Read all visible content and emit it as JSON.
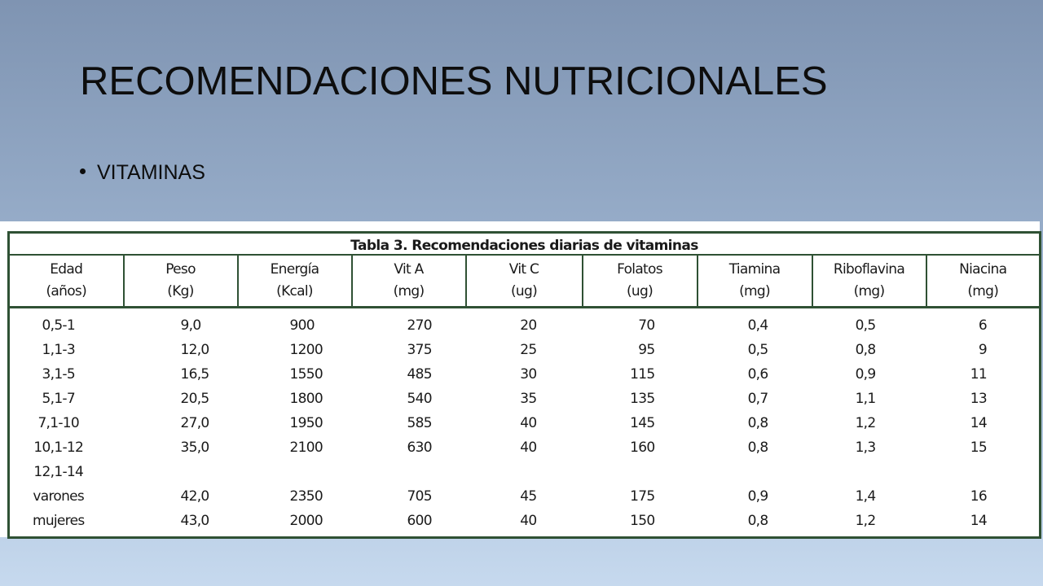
{
  "slide": {
    "title": "RECOMENDACIONES NUTRICIONALES",
    "bullet": "VITAMINAS"
  },
  "table": {
    "caption": "Tabla 3. Recomendaciones diarias de vitaminas",
    "headers": [
      {
        "name": "Edad",
        "unit": "(años)"
      },
      {
        "name": "Peso",
        "unit": "(Kg)"
      },
      {
        "name": "Energía",
        "unit": "(Kcal)"
      },
      {
        "name": "Vit A",
        "unit": "(mg)"
      },
      {
        "name": "Vit C",
        "unit": "(ug)"
      },
      {
        "name": "Folatos",
        "unit": "(ug)"
      },
      {
        "name": "Tiamina",
        "unit": "(mg)"
      },
      {
        "name": "Riboflavina",
        "unit": "(mg)"
      },
      {
        "name": "Niacina",
        "unit": "(mg)"
      }
    ],
    "rows": [
      [
        "0,5-1",
        "9,0",
        "900",
        "270",
        "20",
        "70",
        "0,4",
        "0,5",
        "6"
      ],
      [
        "1,1-3",
        "12,0",
        "1200",
        "375",
        "25",
        "95",
        "0,5",
        "0,8",
        "9"
      ],
      [
        "3,1-5",
        "16,5",
        "1550",
        "485",
        "30",
        "115",
        "0,6",
        "0,9",
        "11"
      ],
      [
        "5,1-7",
        "20,5",
        "1800",
        "540",
        "35",
        "135",
        "0,7",
        "1,1",
        "13"
      ],
      [
        "7,1-10",
        "27,0",
        "1950",
        "585",
        "40",
        "145",
        "0,8",
        "1,2",
        "14"
      ],
      [
        "10,1-12",
        "35,0",
        "2100",
        "630",
        "40",
        "160",
        "0,8",
        "1,3",
        "15"
      ],
      [
        "12,1-14",
        "",
        "",
        "",
        "",
        "",
        "",
        "",
        ""
      ],
      [
        "varones",
        "42,0",
        "2350",
        "705",
        "45",
        "175",
        "0,9",
        "1,4",
        "16"
      ],
      [
        "mujeres",
        "43,0",
        "2000",
        "600",
        "40",
        "150",
        "0,8",
        "1,2",
        "14"
      ]
    ]
  }
}
